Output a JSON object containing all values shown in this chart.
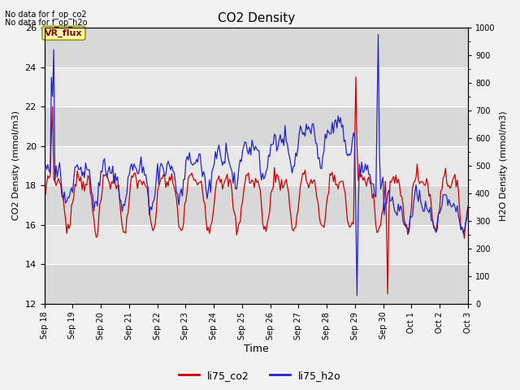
{
  "title": "CO2 Density",
  "xlabel": "Time",
  "ylabel_left": "CO2 Density (mmol/m3)",
  "ylabel_right": "H2O Density (mmol/m3)",
  "ylim_left": [
    12,
    26
  ],
  "ylim_right": [
    0,
    1000
  ],
  "yticks_left": [
    12,
    14,
    16,
    18,
    20,
    22,
    24,
    26
  ],
  "yticks_right": [
    0,
    100,
    200,
    300,
    400,
    500,
    600,
    700,
    800,
    900,
    1000
  ],
  "annotations_top_left": [
    "No data for f_op_co2",
    "No data for f_op_h2o"
  ],
  "box_label": "VR_flux",
  "legend_labels": [
    "li75_co2",
    "li75_h2o"
  ],
  "legend_colors": [
    "#cc0000",
    "#2222cc"
  ],
  "color_co2": "#cc0000",
  "color_h2o": "#2222cc",
  "bg_color": "#e8e8e8",
  "grid_color": "#ffffff",
  "fig_bg": "#f2f2f2",
  "x_tick_positions": [
    0,
    1,
    2,
    3,
    4,
    5,
    6,
    7,
    8,
    9,
    10,
    11,
    12,
    13,
    14,
    15
  ],
  "x_tick_labels": [
    "Sep 18",
    "Sep 19",
    "Sep 20",
    "Sep 21",
    "Sep 22",
    "Sep 23",
    "Sep 24",
    "Sep 25",
    "Sep 26",
    "Sep 27",
    "Sep 28",
    "Sep 29",
    "Sep 30",
    "Oct 1",
    "Oct 2",
    "Oct 3"
  ]
}
